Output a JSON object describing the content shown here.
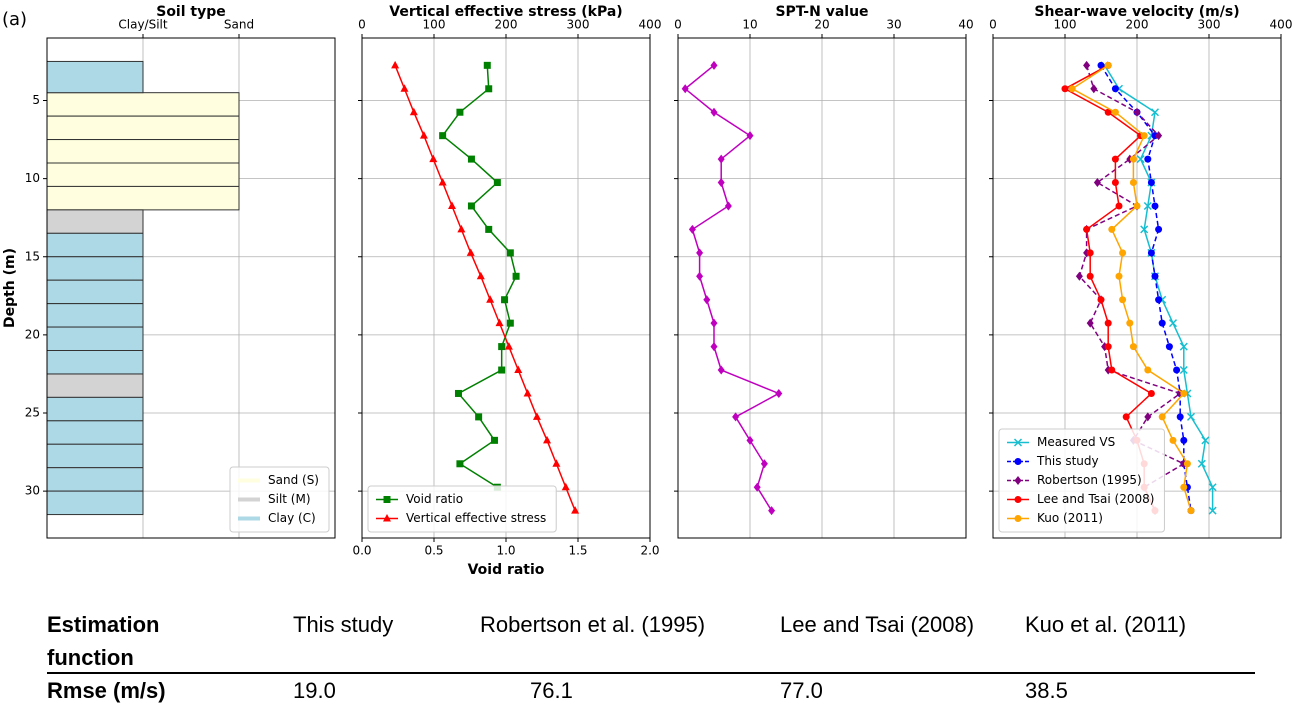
{
  "panel_label": "(a)",
  "chart_data": [
    {
      "type": "soil_column",
      "title": "Soil type",
      "ylabel": "Depth (m)",
      "ylim": [
        1,
        33
      ],
      "y_inverted": true,
      "yticks": [
        5,
        10,
        15,
        20,
        25,
        30
      ],
      "ytick_labels": true,
      "xlim": [
        0,
        3
      ],
      "xaxis_position": "top",
      "xticks": [
        {
          "value": 1,
          "label": "Clay/Silt"
        },
        {
          "value": 2,
          "label": "Sand"
        }
      ],
      "grid": true,
      "legend": "lower right",
      "series": [
        {
          "name": "Sand (S)",
          "color": "#ffffe0",
          "x": 2,
          "layers": [
            [
              4.5,
              6
            ],
            [
              6,
              7.5
            ],
            [
              7.5,
              9
            ],
            [
              9,
              10.5
            ],
            [
              10.5,
              12
            ]
          ]
        },
        {
          "name": "Silt (M)",
          "color": "#d3d3d3",
          "x": 1,
          "layers": [
            [
              12,
              13.5
            ],
            [
              22.5,
              24
            ]
          ]
        },
        {
          "name": "Clay (C)",
          "color": "#add8e6",
          "x": 1,
          "layers": [
            [
              2.5,
              4.5
            ],
            [
              13.5,
              15
            ],
            [
              15,
              16.5
            ],
            [
              16.5,
              18
            ],
            [
              18,
              19.5
            ],
            [
              19.5,
              21
            ],
            [
              21,
              22.5
            ],
            [
              24,
              25.5
            ],
            [
              25.5,
              27
            ],
            [
              27,
              28.5
            ],
            [
              28.5,
              30
            ],
            [
              30,
              31.5
            ]
          ]
        }
      ]
    },
    {
      "type": "profile",
      "title": "Vertical effective stress (kPa)",
      "xlabel": "Void ratio",
      "ylim": [
        1,
        33
      ],
      "y_inverted": true,
      "yticks": [
        5,
        10,
        15,
        20,
        25,
        30
      ],
      "ytick_labels": false,
      "xlim": [
        0,
        2
      ],
      "xaxis_position": "bottom",
      "xticks": [
        {
          "value": 0,
          "label": "0.0"
        },
        0.5,
        {
          "value": 1,
          "label": "1.0"
        },
        1.5,
        {
          "value": 2,
          "label": "2.0"
        }
      ],
      "x2lim": [
        0,
        400
      ],
      "x2ticks": [
        0,
        100,
        200,
        300,
        400
      ],
      "grid": true,
      "legend": "lower left",
      "series": [
        {
          "name": "Void ratio",
          "color": "green",
          "marker": "square",
          "linestyle": "solid",
          "x": [
            0.87,
            0.88,
            0.68,
            0.56,
            0.76,
            0.94,
            0.76,
            0.88,
            1.03,
            1.07,
            0.99,
            1.03,
            0.97,
            0.97,
            0.67,
            0.81,
            0.92,
            0.68,
            0.94
          ],
          "y": [
            2.75,
            4.25,
            5.75,
            7.25,
            8.75,
            10.25,
            11.75,
            13.25,
            14.75,
            16.25,
            17.75,
            19.25,
            20.75,
            22.25,
            23.75,
            25.25,
            26.75,
            28.25,
            29.75
          ]
        },
        {
          "name": "Vertical effective stress",
          "color": "red",
          "marker": "triangle",
          "linestyle": "solid",
          "axis": "x2",
          "x": [
            46,
            59,
            72,
            86,
            99,
            112,
            125,
            138,
            151,
            165,
            178,
            191,
            204,
            217,
            230,
            243,
            257,
            270,
            283,
            296
          ],
          "y": [
            2.75,
            4.25,
            5.75,
            7.25,
            8.75,
            10.25,
            11.75,
            13.25,
            14.75,
            16.25,
            17.75,
            19.25,
            20.75,
            22.25,
            23.75,
            25.25,
            26.75,
            28.25,
            29.75,
            31.25
          ]
        }
      ]
    },
    {
      "type": "profile",
      "title": "SPT-N value",
      "ylim": [
        1,
        33
      ],
      "y_inverted": true,
      "yticks": [
        5,
        10,
        15,
        20,
        25,
        30
      ],
      "ytick_labels": false,
      "xlim": [
        0,
        40
      ],
      "xaxis_position": "top",
      "xticks": [
        0,
        10,
        20,
        30,
        40
      ],
      "grid": true,
      "series": [
        {
          "color": "#bf00bf",
          "marker": "diamond",
          "linestyle": "solid",
          "x": [
            5,
            1,
            5,
            10,
            6,
            6,
            7,
            2,
            3,
            3,
            4,
            5,
            5,
            6,
            14,
            8,
            10,
            12,
            11,
            13
          ],
          "y": [
            2.75,
            4.25,
            5.75,
            7.25,
            8.75,
            10.25,
            11.75,
            13.25,
            14.75,
            16.25,
            17.75,
            19.25,
            20.75,
            22.25,
            23.75,
            25.25,
            26.75,
            28.25,
            29.75,
            31.25
          ]
        }
      ]
    },
    {
      "type": "profile",
      "title": "Shear-wave velocity (m/s)",
      "ylim": [
        1,
        33
      ],
      "y_inverted": true,
      "yticks": [
        5,
        10,
        15,
        20,
        25,
        30
      ],
      "ytick_labels": false,
      "xlim": [
        0,
        400
      ],
      "xaxis_position": "top",
      "xticks": [
        0,
        100,
        200,
        300,
        400
      ],
      "grid": true,
      "legend": "lower left",
      "series": [
        {
          "name": "Measured VS",
          "color": "#17becf",
          "marker": "x",
          "linestyle": "solid",
          "x": [
            155,
            175,
            225,
            220,
            205,
            220,
            215,
            210,
            220,
            225,
            235,
            250,
            265,
            265,
            270,
            275,
            295,
            290,
            305,
            305
          ],
          "y": [
            2.75,
            4.25,
            5.75,
            7.25,
            8.75,
            10.25,
            11.75,
            13.25,
            14.75,
            16.25,
            17.75,
            19.25,
            20.75,
            22.25,
            23.75,
            25.25,
            26.75,
            28.25,
            29.75,
            31.25
          ]
        },
        {
          "name": "This study",
          "color": "#0000ff",
          "marker": "circle",
          "linestyle": "dashed",
          "x": [
            150,
            170,
            200,
            225,
            215,
            220,
            225,
            230,
            220,
            225,
            230,
            235,
            245,
            255,
            260,
            260,
            265,
            265,
            270,
            275
          ],
          "y": [
            2.75,
            4.25,
            5.75,
            7.25,
            8.75,
            10.25,
            11.75,
            13.25,
            14.75,
            16.25,
            17.75,
            19.25,
            20.75,
            22.25,
            23.75,
            25.25,
            26.75,
            28.25,
            29.75,
            31.25
          ]
        },
        {
          "name": "Robertson (1995)",
          "color": "#800080",
          "marker": "diamond",
          "linestyle": "dashed",
          "x": [
            130,
            140,
            200,
            230,
            190,
            145,
            200,
            130,
            130,
            120,
            150,
            135,
            155,
            160,
            260,
            215,
            195,
            265,
            210,
            225
          ],
          "y": [
            2.75,
            4.25,
            5.75,
            7.25,
            8.75,
            10.25,
            11.75,
            13.25,
            14.75,
            16.25,
            17.75,
            19.25,
            20.75,
            22.25,
            23.75,
            25.25,
            26.75,
            28.25,
            29.75,
            31.25
          ]
        },
        {
          "name": "Lee and Tsai (2008)",
          "color": "#ff0000",
          "marker": "circle",
          "linestyle": "solid",
          "x": [
            160,
            100,
            160,
            205,
            170,
            170,
            175,
            130,
            135,
            135,
            150,
            160,
            160,
            165,
            220,
            185,
            200,
            210,
            210,
            225
          ],
          "y": [
            2.75,
            4.25,
            5.75,
            7.25,
            8.75,
            10.25,
            11.75,
            13.25,
            14.75,
            16.25,
            17.75,
            19.25,
            20.75,
            22.25,
            23.75,
            25.25,
            26.75,
            28.25,
            29.75,
            31.25
          ]
        },
        {
          "name": "Kuo (2011)",
          "color": "#ffa500",
          "marker": "circle",
          "linestyle": "solid",
          "x": [
            160,
            110,
            170,
            210,
            195,
            195,
            200,
            165,
            180,
            175,
            180,
            190,
            195,
            215,
            265,
            235,
            250,
            270,
            265,
            275
          ],
          "y": [
            2.75,
            4.25,
            5.75,
            7.25,
            8.75,
            10.25,
            11.75,
            13.25,
            14.75,
            16.25,
            17.75,
            19.25,
            20.75,
            22.25,
            23.75,
            25.25,
            26.75,
            28.25,
            29.75,
            31.25
          ]
        }
      ]
    }
  ],
  "table": {
    "header": [
      "Estimation function",
      "This study",
      "Robertson et al. (1995)",
      "Lee and Tsai (2008)",
      "Kuo et al. (2011)"
    ],
    "rows": [
      [
        "Rmse (m/s)",
        "19.0",
        "76.1",
        "77.0",
        "38.5"
      ]
    ]
  }
}
